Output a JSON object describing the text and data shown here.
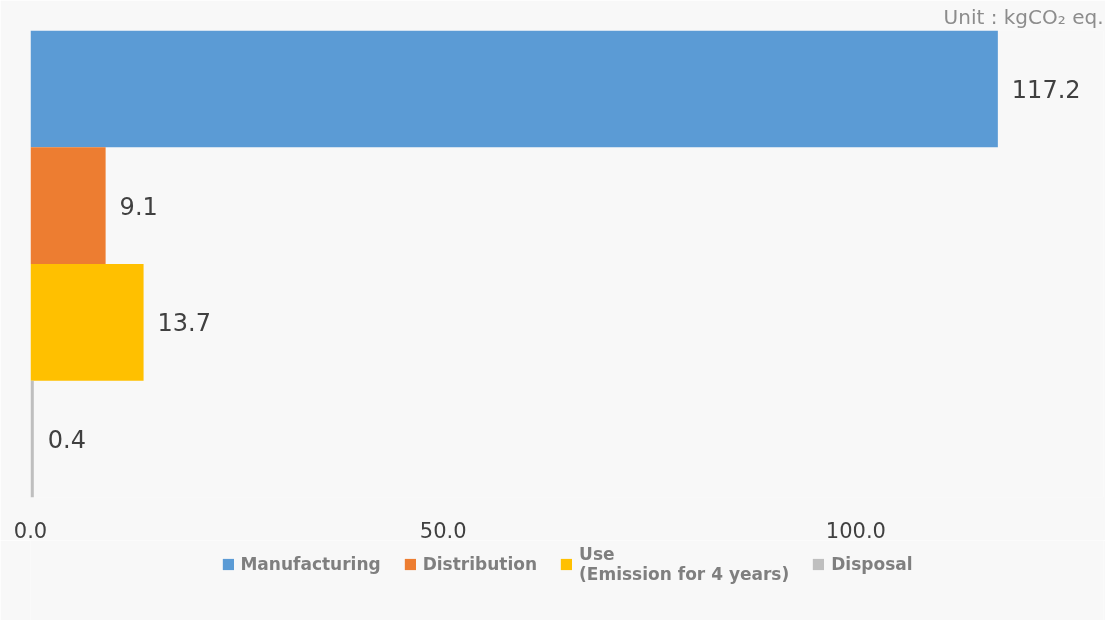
{
  "chart_data": {
    "type": "bar",
    "orientation": "horizontal",
    "stacked": true,
    "categories": [
      null,
      null,
      null,
      null
    ],
    "series": [
      {
        "name": "Manufacturing",
        "color": "#5b9bd5",
        "values": [
          117.2,
          null,
          null,
          null
        ]
      },
      {
        "name": "Distribution",
        "color": "#ed7d31",
        "values": [
          null,
          9.1,
          null,
          null
        ]
      },
      {
        "name": "Use\n(Emission for 4 years)",
        "color": "#ffc000",
        "values": [
          null,
          null,
          13.7,
          null
        ]
      },
      {
        "name": "Disposal",
        "color": "#bfbfbf",
        "values": [
          null,
          null,
          null,
          0.4
        ]
      }
    ],
    "xlim": [
      0,
      130
    ],
    "xticks": [
      {
        "value": 0,
        "label": "0.0"
      },
      {
        "value": 50,
        "label": "50.0"
      },
      {
        "value": 100,
        "label": "100.0"
      }
    ],
    "data_labels": true,
    "grid": false,
    "legend": "bottom",
    "annotations": [
      "Unit : kgCO₂ eq."
    ]
  }
}
